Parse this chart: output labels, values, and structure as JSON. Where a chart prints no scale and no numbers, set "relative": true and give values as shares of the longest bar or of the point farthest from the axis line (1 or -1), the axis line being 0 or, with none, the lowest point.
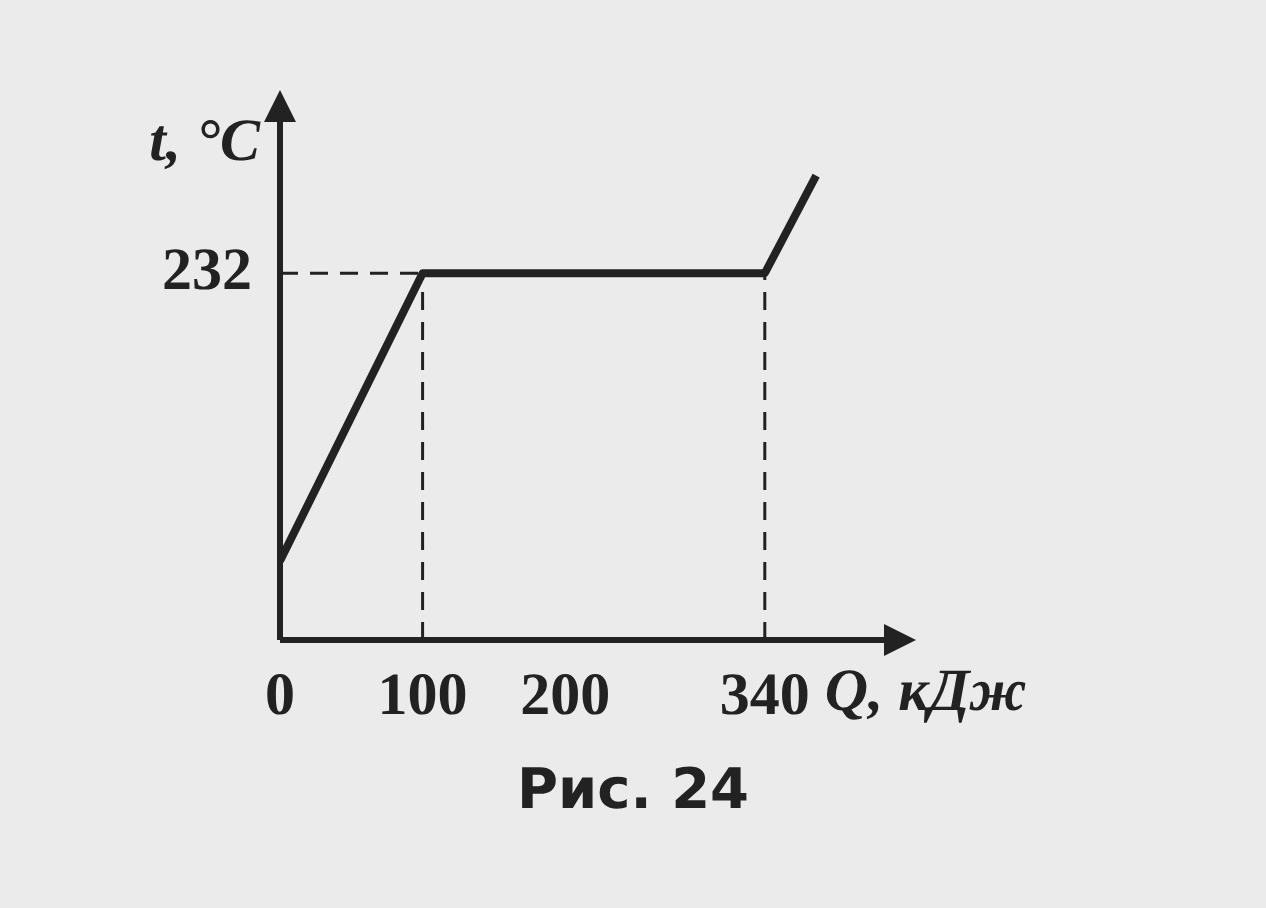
{
  "chart_data": {
    "type": "line",
    "xlabel": "Q, кДж",
    "ylabel": "t, °C",
    "relative": true,
    "x": [
      0,
      100,
      340,
      376
    ],
    "series": [
      {
        "color": "#222222",
        "values": [
          0.17,
          0.79,
          0.79,
          1
        ]
      }
    ],
    "xlim": [
      0,
      425
    ],
    "xticks": [
      0,
      100,
      200,
      340
    ],
    "ref_lines": [
      {
        "axis": "y",
        "value": 0.79,
        "line_style": "dashed"
      },
      {
        "axis": "x",
        "value": 100,
        "line_style": "dashed"
      },
      {
        "axis": "x",
        "value": 340,
        "line_style": "dashed"
      }
    ],
    "marker": "none",
    "line_style": "solid",
    "grid": false,
    "legend": false,
    "annotations": [
      "232",
      "Рис. 24"
    ]
  }
}
